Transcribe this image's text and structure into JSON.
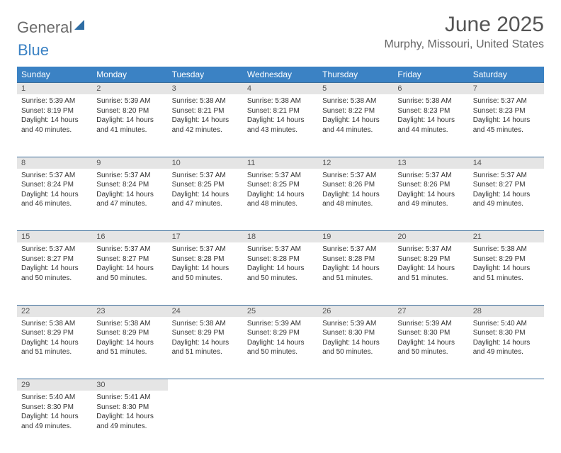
{
  "brand": {
    "part1": "General",
    "part2": "Blue"
  },
  "title": "June 2025",
  "location": "Murphy, Missouri, United States",
  "colors": {
    "header_bg": "#3b82c4",
    "header_text": "#ffffff",
    "daynum_bg": "#e5e5e5",
    "row_border": "#3b6d9a",
    "body_text": "#333333",
    "title_text": "#555555",
    "logo_gray": "#6a6a6a",
    "logo_blue": "#3b82c4"
  },
  "day_headers": [
    "Sunday",
    "Monday",
    "Tuesday",
    "Wednesday",
    "Thursday",
    "Friday",
    "Saturday"
  ],
  "weeks": [
    [
      {
        "n": "1",
        "sunrise": "5:39 AM",
        "sunset": "8:19 PM",
        "daylight": "14 hours and 40 minutes."
      },
      {
        "n": "2",
        "sunrise": "5:39 AM",
        "sunset": "8:20 PM",
        "daylight": "14 hours and 41 minutes."
      },
      {
        "n": "3",
        "sunrise": "5:38 AM",
        "sunset": "8:21 PM",
        "daylight": "14 hours and 42 minutes."
      },
      {
        "n": "4",
        "sunrise": "5:38 AM",
        "sunset": "8:21 PM",
        "daylight": "14 hours and 43 minutes."
      },
      {
        "n": "5",
        "sunrise": "5:38 AM",
        "sunset": "8:22 PM",
        "daylight": "14 hours and 44 minutes."
      },
      {
        "n": "6",
        "sunrise": "5:38 AM",
        "sunset": "8:23 PM",
        "daylight": "14 hours and 44 minutes."
      },
      {
        "n": "7",
        "sunrise": "5:37 AM",
        "sunset": "8:23 PM",
        "daylight": "14 hours and 45 minutes."
      }
    ],
    [
      {
        "n": "8",
        "sunrise": "5:37 AM",
        "sunset": "8:24 PM",
        "daylight": "14 hours and 46 minutes."
      },
      {
        "n": "9",
        "sunrise": "5:37 AM",
        "sunset": "8:24 PM",
        "daylight": "14 hours and 47 minutes."
      },
      {
        "n": "10",
        "sunrise": "5:37 AM",
        "sunset": "8:25 PM",
        "daylight": "14 hours and 47 minutes."
      },
      {
        "n": "11",
        "sunrise": "5:37 AM",
        "sunset": "8:25 PM",
        "daylight": "14 hours and 48 minutes."
      },
      {
        "n": "12",
        "sunrise": "5:37 AM",
        "sunset": "8:26 PM",
        "daylight": "14 hours and 48 minutes."
      },
      {
        "n": "13",
        "sunrise": "5:37 AM",
        "sunset": "8:26 PM",
        "daylight": "14 hours and 49 minutes."
      },
      {
        "n": "14",
        "sunrise": "5:37 AM",
        "sunset": "8:27 PM",
        "daylight": "14 hours and 49 minutes."
      }
    ],
    [
      {
        "n": "15",
        "sunrise": "5:37 AM",
        "sunset": "8:27 PM",
        "daylight": "14 hours and 50 minutes."
      },
      {
        "n": "16",
        "sunrise": "5:37 AM",
        "sunset": "8:27 PM",
        "daylight": "14 hours and 50 minutes."
      },
      {
        "n": "17",
        "sunrise": "5:37 AM",
        "sunset": "8:28 PM",
        "daylight": "14 hours and 50 minutes."
      },
      {
        "n": "18",
        "sunrise": "5:37 AM",
        "sunset": "8:28 PM",
        "daylight": "14 hours and 50 minutes."
      },
      {
        "n": "19",
        "sunrise": "5:37 AM",
        "sunset": "8:28 PM",
        "daylight": "14 hours and 51 minutes."
      },
      {
        "n": "20",
        "sunrise": "5:37 AM",
        "sunset": "8:29 PM",
        "daylight": "14 hours and 51 minutes."
      },
      {
        "n": "21",
        "sunrise": "5:38 AM",
        "sunset": "8:29 PM",
        "daylight": "14 hours and 51 minutes."
      }
    ],
    [
      {
        "n": "22",
        "sunrise": "5:38 AM",
        "sunset": "8:29 PM",
        "daylight": "14 hours and 51 minutes."
      },
      {
        "n": "23",
        "sunrise": "5:38 AM",
        "sunset": "8:29 PM",
        "daylight": "14 hours and 51 minutes."
      },
      {
        "n": "24",
        "sunrise": "5:38 AM",
        "sunset": "8:29 PM",
        "daylight": "14 hours and 51 minutes."
      },
      {
        "n": "25",
        "sunrise": "5:39 AM",
        "sunset": "8:29 PM",
        "daylight": "14 hours and 50 minutes."
      },
      {
        "n": "26",
        "sunrise": "5:39 AM",
        "sunset": "8:30 PM",
        "daylight": "14 hours and 50 minutes."
      },
      {
        "n": "27",
        "sunrise": "5:39 AM",
        "sunset": "8:30 PM",
        "daylight": "14 hours and 50 minutes."
      },
      {
        "n": "28",
        "sunrise": "5:40 AM",
        "sunset": "8:30 PM",
        "daylight": "14 hours and 49 minutes."
      }
    ],
    [
      {
        "n": "29",
        "sunrise": "5:40 AM",
        "sunset": "8:30 PM",
        "daylight": "14 hours and 49 minutes."
      },
      {
        "n": "30",
        "sunrise": "5:41 AM",
        "sunset": "8:30 PM",
        "daylight": "14 hours and 49 minutes."
      },
      null,
      null,
      null,
      null,
      null
    ]
  ],
  "labels": {
    "sunrise": "Sunrise: ",
    "sunset": "Sunset: ",
    "daylight": "Daylight: "
  }
}
